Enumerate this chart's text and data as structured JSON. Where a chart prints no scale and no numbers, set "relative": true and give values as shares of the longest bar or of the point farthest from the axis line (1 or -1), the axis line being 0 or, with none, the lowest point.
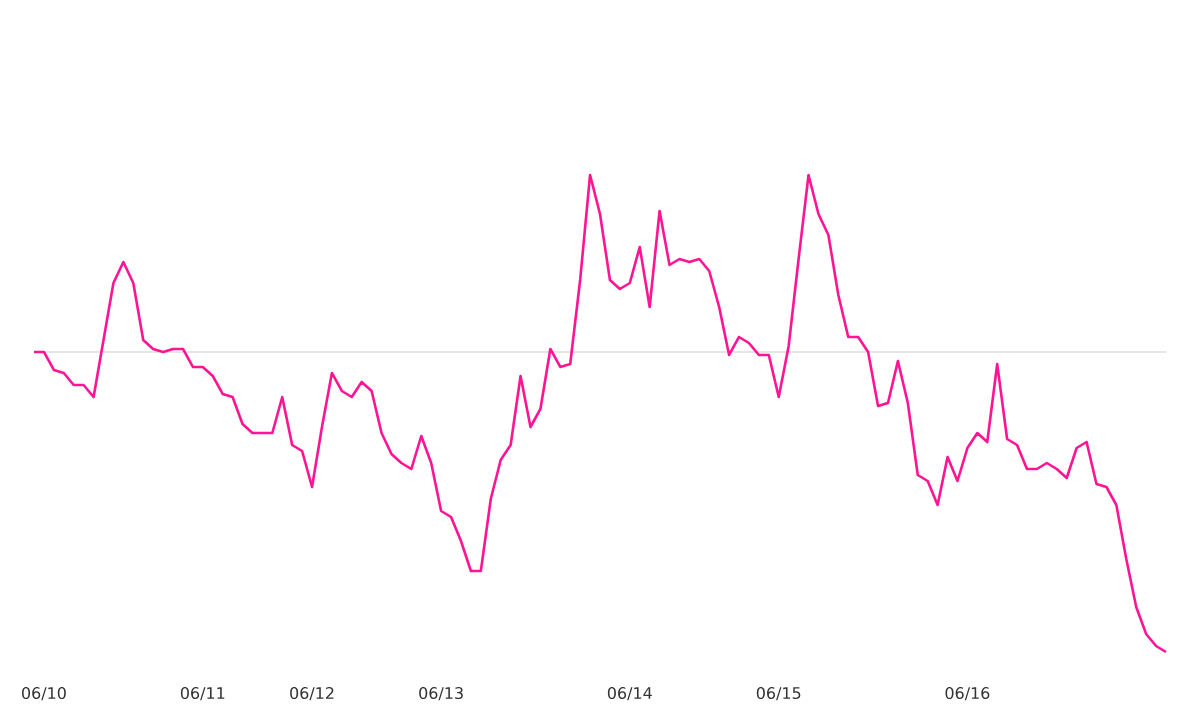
{
  "chart_data": {
    "type": "line",
    "relative": true,
    "tick_labels": "x",
    "categories": [
      null,
      "06/10",
      null,
      null,
      null,
      null,
      null,
      null,
      null,
      null,
      null,
      null,
      null,
      null,
      null,
      null,
      null,
      "06/11",
      null,
      null,
      null,
      null,
      null,
      null,
      null,
      null,
      null,
      null,
      "06/12",
      null,
      null,
      null,
      null,
      null,
      null,
      null,
      null,
      null,
      null,
      null,
      null,
      "06/13",
      null,
      null,
      null,
      null,
      null,
      null,
      null,
      null,
      null,
      null,
      null,
      null,
      null,
      null,
      null,
      null,
      null,
      null,
      "06/14",
      null,
      null,
      null,
      null,
      null,
      null,
      null,
      null,
      null,
      null,
      null,
      null,
      null,
      null,
      "06/15",
      null,
      null,
      null,
      null,
      null,
      null,
      null,
      null,
      null,
      null,
      null,
      null,
      null,
      null,
      null,
      null,
      null,
      null,
      "06/16",
      null,
      null,
      null,
      null,
      null,
      null,
      null,
      null,
      null,
      null,
      null,
      null,
      null,
      null,
      null,
      null,
      null,
      null,
      null,
      null
    ],
    "series": [
      {
        "color": "#ff1493",
        "values": [
          0,
          0,
          -0.06,
          -0.07,
          -0.11,
          -0.11,
          -0.15,
          0.04,
          0.23,
          0.3,
          0.23,
          0.04,
          0.01,
          0,
          0.01,
          0.01,
          -0.05,
          -0.05,
          -0.08,
          -0.14,
          -0.15,
          -0.24,
          -0.27,
          -0.27,
          -0.27,
          -0.15,
          -0.31,
          -0.33,
          -0.45,
          -0.25,
          -0.07,
          -0.13,
          -0.15,
          -0.1,
          -0.13,
          -0.27,
          -0.34,
          -0.37,
          -0.39,
          -0.28,
          -0.37,
          -0.53,
          -0.55,
          -0.63,
          -0.73,
          -0.73,
          -0.49,
          -0.36,
          -0.31,
          -0.08,
          -0.25,
          -0.19,
          0.01,
          -0.05,
          -0.04,
          0.24,
          0.59,
          0.46,
          0.24,
          0.21,
          0.23,
          0.35,
          0.15,
          0.47,
          0.29,
          0.31,
          0.3,
          0.31,
          0.27,
          0.15,
          -0.01,
          0.05,
          0.03,
          -0.01,
          -0.01,
          -0.15,
          0.02,
          0.31,
          0.59,
          0.46,
          0.39,
          0.19,
          0.05,
          0.05,
          0,
          -0.18,
          -0.17,
          -0.03,
          -0.17,
          -0.41,
          -0.43,
          -0.51,
          -0.35,
          -0.43,
          -0.32,
          -0.27,
          -0.3,
          -0.04,
          -0.29,
          -0.31,
          -0.39,
          -0.39,
          -0.37,
          -0.39,
          -0.42,
          -0.32,
          -0.3,
          -0.44,
          -0.45,
          -0.51,
          -0.69,
          -0.85,
          -0.94,
          -0.98,
          -1
        ]
      }
    ],
    "ref_lines": [
      {
        "axis": "y",
        "value": 0,
        "color": "#dddddd"
      }
    ]
  }
}
